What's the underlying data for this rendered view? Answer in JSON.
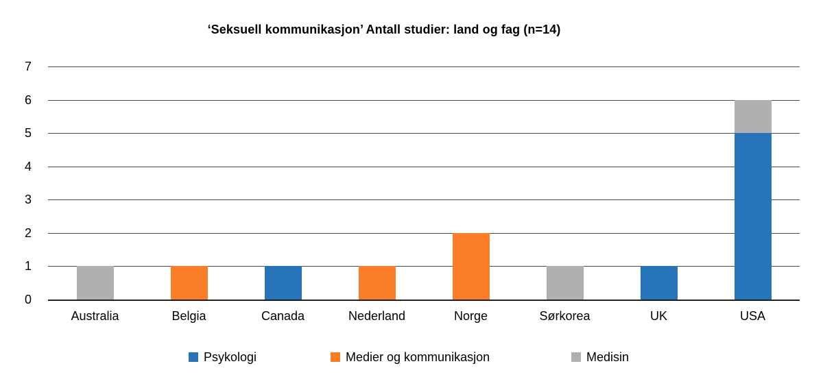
{
  "chart_data": {
    "type": "bar",
    "stacked": true,
    "title": "‘Seksuell kommunikasjon’ Antall studier: land og fag (n=14)",
    "categories": [
      "Australia",
      "Belgia",
      "Canada",
      "Nederland",
      "Norge",
      "Sørkorea",
      "UK",
      "USA"
    ],
    "series": [
      {
        "name": "Psykologi",
        "color": "#2874BA",
        "values": [
          0,
          0,
          1,
          0,
          0,
          0,
          1,
          5
        ]
      },
      {
        "name": "Medier og kommunikasjon",
        "color": "#FA7E27",
        "values": [
          0,
          1,
          0,
          1,
          2,
          0,
          0,
          0
        ]
      },
      {
        "name": "Medisin",
        "color": "#B0B0B2",
        "values": [
          1,
          0,
          0,
          0,
          0,
          1,
          0,
          1
        ]
      }
    ],
    "totals_by_category": [
      1,
      1,
      1,
      1,
      2,
      1,
      1,
      6
    ],
    "xlabel": "",
    "ylabel": "",
    "ylim": [
      0,
      7
    ],
    "yticks": [
      0,
      1,
      2,
      3,
      4,
      5,
      6,
      7
    ],
    "grid": true,
    "legend_position": "bottom"
  },
  "style": {
    "background": "#ffffff",
    "gridline_color": "#4a4a4a",
    "axis_color": "#1f1f1f",
    "text_color": "#000000"
  }
}
